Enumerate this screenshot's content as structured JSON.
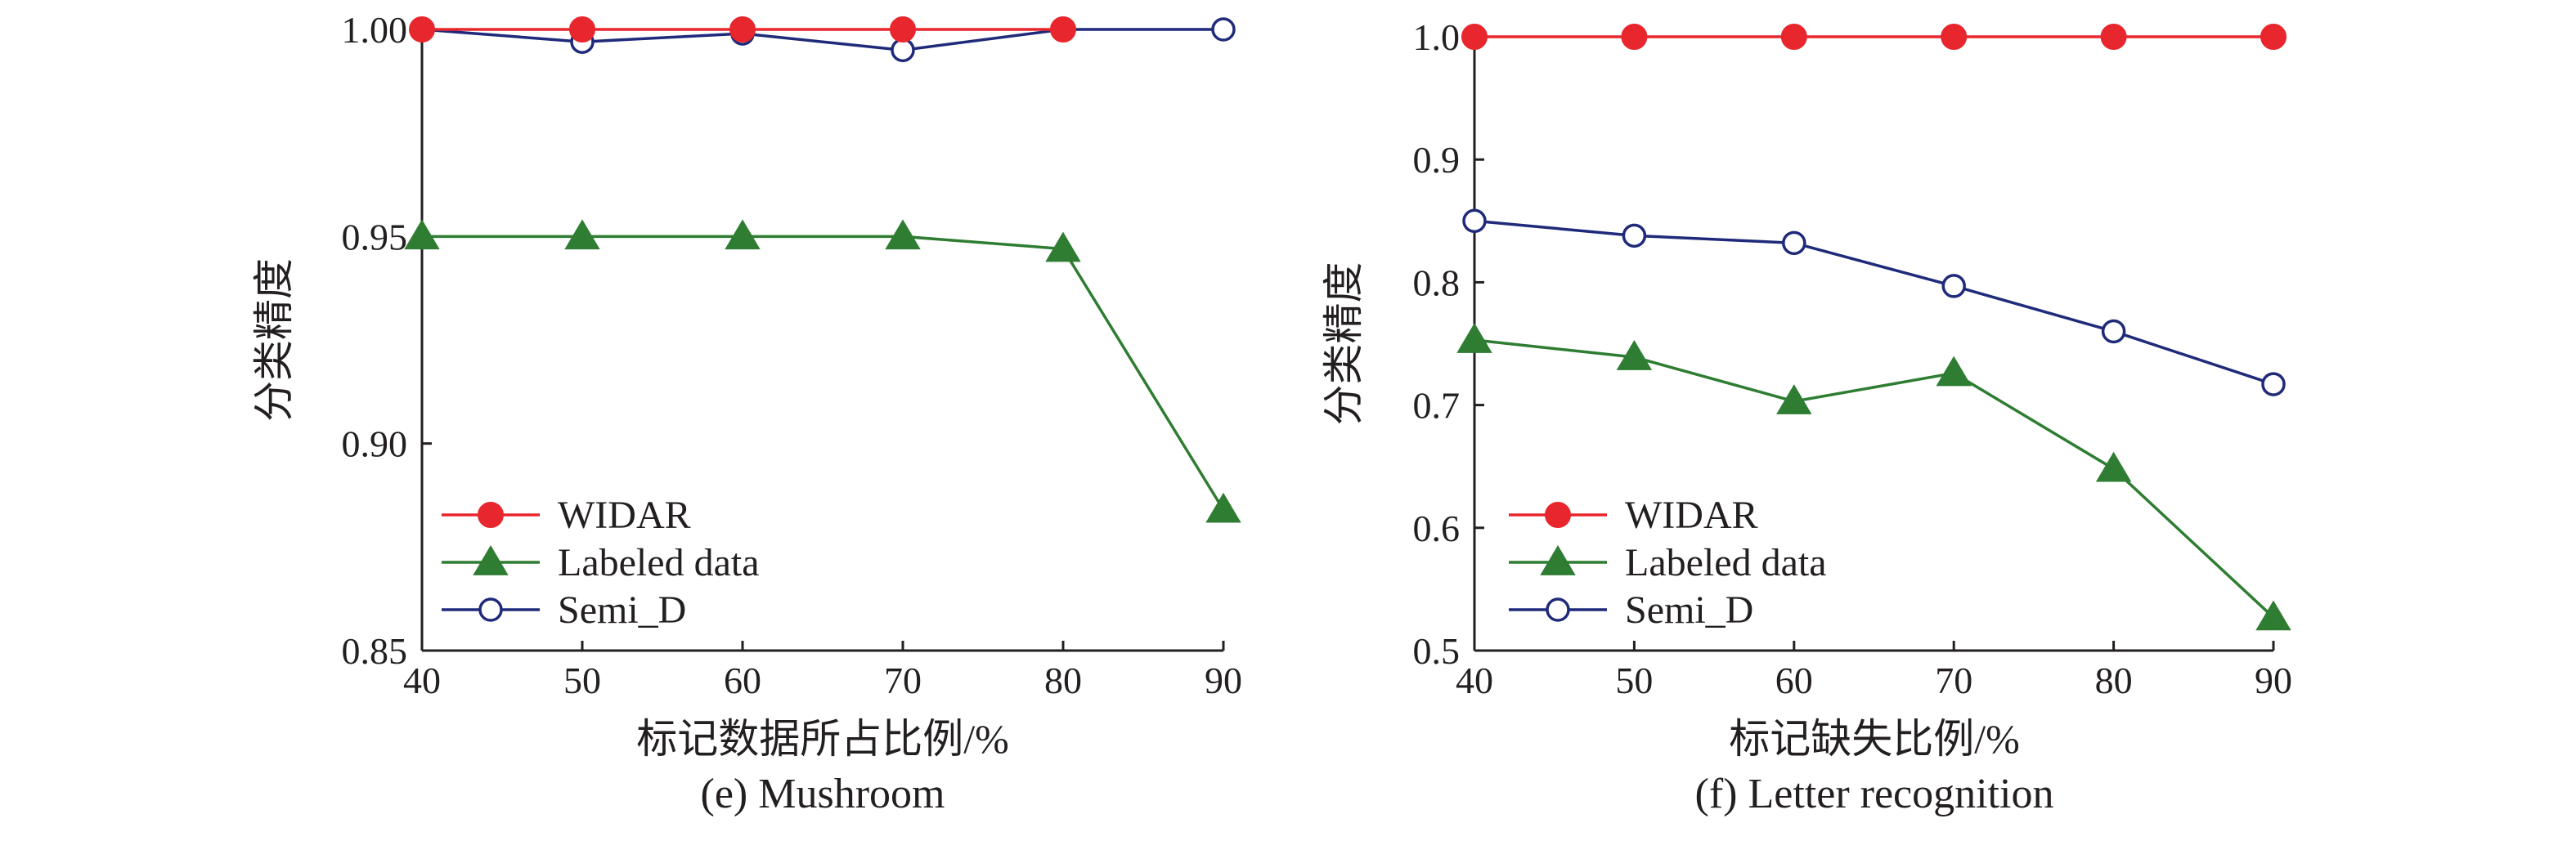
{
  "chart_data": [
    {
      "type": "line",
      "caption": "(e) Mushroom",
      "xlabel": "标记数据所占比例/%",
      "ylabel": "分类精度",
      "x": [
        40,
        50,
        60,
        70,
        80,
        90
      ],
      "x_ticks": [
        "40",
        "50",
        "60",
        "70",
        "80",
        "90"
      ],
      "xlim": [
        40,
        90
      ],
      "ylim": [
        0.85,
        1.0
      ],
      "y_ticks": [
        0.85,
        0.9,
        0.95,
        1.0
      ],
      "y_tick_labels": [
        "0.85",
        "0.90",
        "0.95",
        "1.00"
      ],
      "series": [
        {
          "name": "WIDAR",
          "color": "#e8262d",
          "marker": "filled-circle",
          "x": [
            40,
            50,
            60,
            70,
            80
          ],
          "values": [
            1.0,
            1.0,
            1.0,
            1.0,
            1.0
          ]
        },
        {
          "name": "Labeled data",
          "color": "#2e7d32",
          "marker": "filled-triangle",
          "x": [
            40,
            50,
            60,
            70,
            80,
            90
          ],
          "values": [
            0.95,
            0.95,
            0.95,
            0.95,
            0.947,
            0.884
          ]
        },
        {
          "name": "Semi_D",
          "color": "#1f2a7a",
          "marker": "open-circle",
          "x": [
            40,
            50,
            60,
            70,
            80,
            90
          ],
          "values": [
            1.0,
            0.997,
            0.999,
            0.995,
            1.0,
            1.0
          ]
        }
      ],
      "legend_position": "bottom-left"
    },
    {
      "type": "line",
      "caption": "(f) Letter recognition",
      "xlabel": "标记缺失比例/%",
      "ylabel": "分类精度",
      "x": [
        40,
        50,
        60,
        70,
        80,
        90
      ],
      "x_ticks": [
        "40",
        "50",
        "60",
        "70",
        "80",
        "90"
      ],
      "xlim": [
        40,
        90
      ],
      "ylim": [
        0.5,
        1.0
      ],
      "y_ticks": [
        0.5,
        0.6,
        0.7,
        0.8,
        0.9,
        1.0
      ],
      "y_tick_labels": [
        "0.5",
        "0.6",
        "0.7",
        "0.8",
        "0.9",
        "1.0"
      ],
      "series": [
        {
          "name": "WIDAR",
          "color": "#e8262d",
          "marker": "filled-circle",
          "x": [
            40,
            50,
            60,
            70,
            80,
            90
          ],
          "values": [
            1.0,
            1.0,
            1.0,
            1.0,
            1.0,
            1.0
          ]
        },
        {
          "name": "Labeled data",
          "color": "#2e7d32",
          "marker": "filled-triangle",
          "x": [
            40,
            50,
            60,
            70,
            80,
            90
          ],
          "values": [
            0.753,
            0.739,
            0.703,
            0.726,
            0.648,
            0.527
          ]
        },
        {
          "name": "Semi_D",
          "color": "#1f2a7a",
          "marker": "open-circle",
          "x": [
            40,
            50,
            60,
            70,
            80,
            90
          ],
          "values": [
            0.85,
            0.838,
            0.832,
            0.797,
            0.76,
            0.717
          ]
        }
      ],
      "legend_position": "bottom-left"
    }
  ]
}
